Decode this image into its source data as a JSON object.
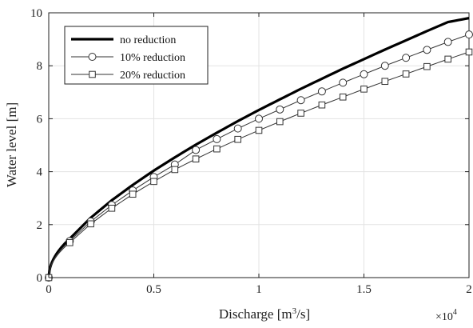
{
  "chart_data": {
    "type": "line",
    "xlabel": "Discharge [m",
    "xlabel_sup": "3",
    "xlabel_end": "/s]",
    "ylabel": "Water level [m]",
    "x_multiplier": "×10",
    "x_multiplier_exp": "4",
    "xlim": [
      0,
      2
    ],
    "ylim": [
      0,
      10
    ],
    "x_ticks": [
      0,
      0.5,
      1,
      1.5,
      2
    ],
    "x_tick_labels": [
      "0",
      "0.5",
      "1",
      "1.5",
      "2"
    ],
    "y_ticks": [
      0,
      2,
      4,
      6,
      8,
      10
    ],
    "y_tick_labels": [
      "0",
      "2",
      "4",
      "6",
      "8",
      "10"
    ],
    "grid": true,
    "legend_position": "top-left",
    "x": [
      0,
      0.1,
      0.2,
      0.3,
      0.4,
      0.5,
      0.6,
      0.7,
      0.8,
      0.9,
      1.0,
      1.1,
      1.2,
      1.3,
      1.4,
      1.5,
      1.6,
      1.7,
      1.8,
      1.9,
      2.0
    ],
    "series": [
      {
        "name": "no reduction",
        "color": "#000000",
        "marker": "none",
        "values": [
          0.0,
          1.47,
          2.26,
          2.92,
          3.5,
          4.04,
          4.54,
          5.02,
          5.47,
          5.91,
          6.33,
          6.73,
          7.13,
          7.51,
          7.89,
          8.25,
          8.61,
          8.96,
          9.31,
          9.65,
          9.8
        ]
      },
      {
        "name": "10% reduction",
        "color": "#333333",
        "marker": "circle",
        "values": [
          0.0,
          1.38,
          2.12,
          2.74,
          3.29,
          3.8,
          4.27,
          4.82,
          5.23,
          5.63,
          6.0,
          6.35,
          6.7,
          7.03,
          7.36,
          7.68,
          8.0,
          8.3,
          8.6,
          8.9,
          9.18
        ]
      },
      {
        "name": "20% reduction",
        "color": "#333333",
        "marker": "square",
        "values": [
          0.0,
          1.32,
          2.03,
          2.62,
          3.15,
          3.63,
          4.08,
          4.48,
          4.86,
          5.22,
          5.56,
          5.89,
          6.21,
          6.52,
          6.82,
          7.12,
          7.41,
          7.69,
          7.97,
          8.25,
          8.52
        ]
      }
    ]
  }
}
